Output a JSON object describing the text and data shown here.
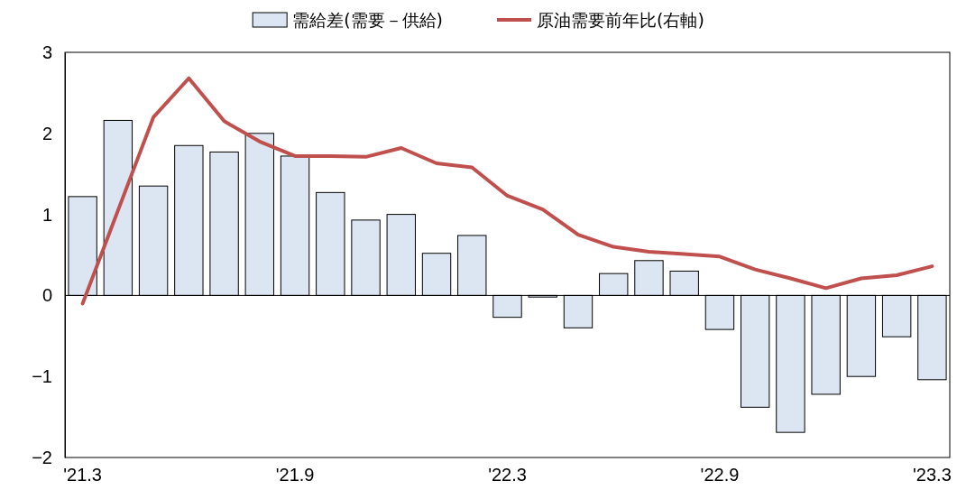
{
  "chart_data": {
    "type": "bar",
    "categories": [
      "'21.3",
      null,
      null,
      null,
      null,
      null,
      "'21.9",
      null,
      null,
      null,
      null,
      null,
      "'22.3",
      null,
      null,
      null,
      null,
      null,
      "'22.9",
      null,
      null,
      null,
      null,
      null,
      "'23.3"
    ],
    "series": [
      {
        "name": "需給差(需要－供給)",
        "color": "#dce6f2",
        "values": [
          1.22,
          2.16,
          1.35,
          1.85,
          1.77,
          2.0,
          1.72,
          1.27,
          0.93,
          1.0,
          0.52,
          0.74,
          -0.27,
          -0.02,
          -0.4,
          0.27,
          0.43,
          0.3,
          -0.42,
          -1.38,
          -1.69,
          -1.22,
          -1.0,
          -0.51,
          -1.04
        ]
      },
      {
        "name": "原油需要前年比(右軸)",
        "type": "line",
        "color": "#c0504d",
        "values": [
          -0.1,
          1.05,
          2.2,
          2.68,
          2.15,
          1.9,
          1.72,
          1.72,
          1.71,
          1.82,
          1.63,
          1.58,
          1.23,
          1.06,
          0.75,
          0.6,
          0.54,
          0.51,
          0.48,
          0.32,
          0.21,
          0.09,
          0.21,
          0.25,
          0.36
        ]
      }
    ],
    "ylim": [
      -2,
      3
    ],
    "yticks": [
      -2,
      -1,
      0,
      1,
      2,
      3
    ],
    "legend": "top",
    "marker": "none",
    "line_style": "solid"
  }
}
